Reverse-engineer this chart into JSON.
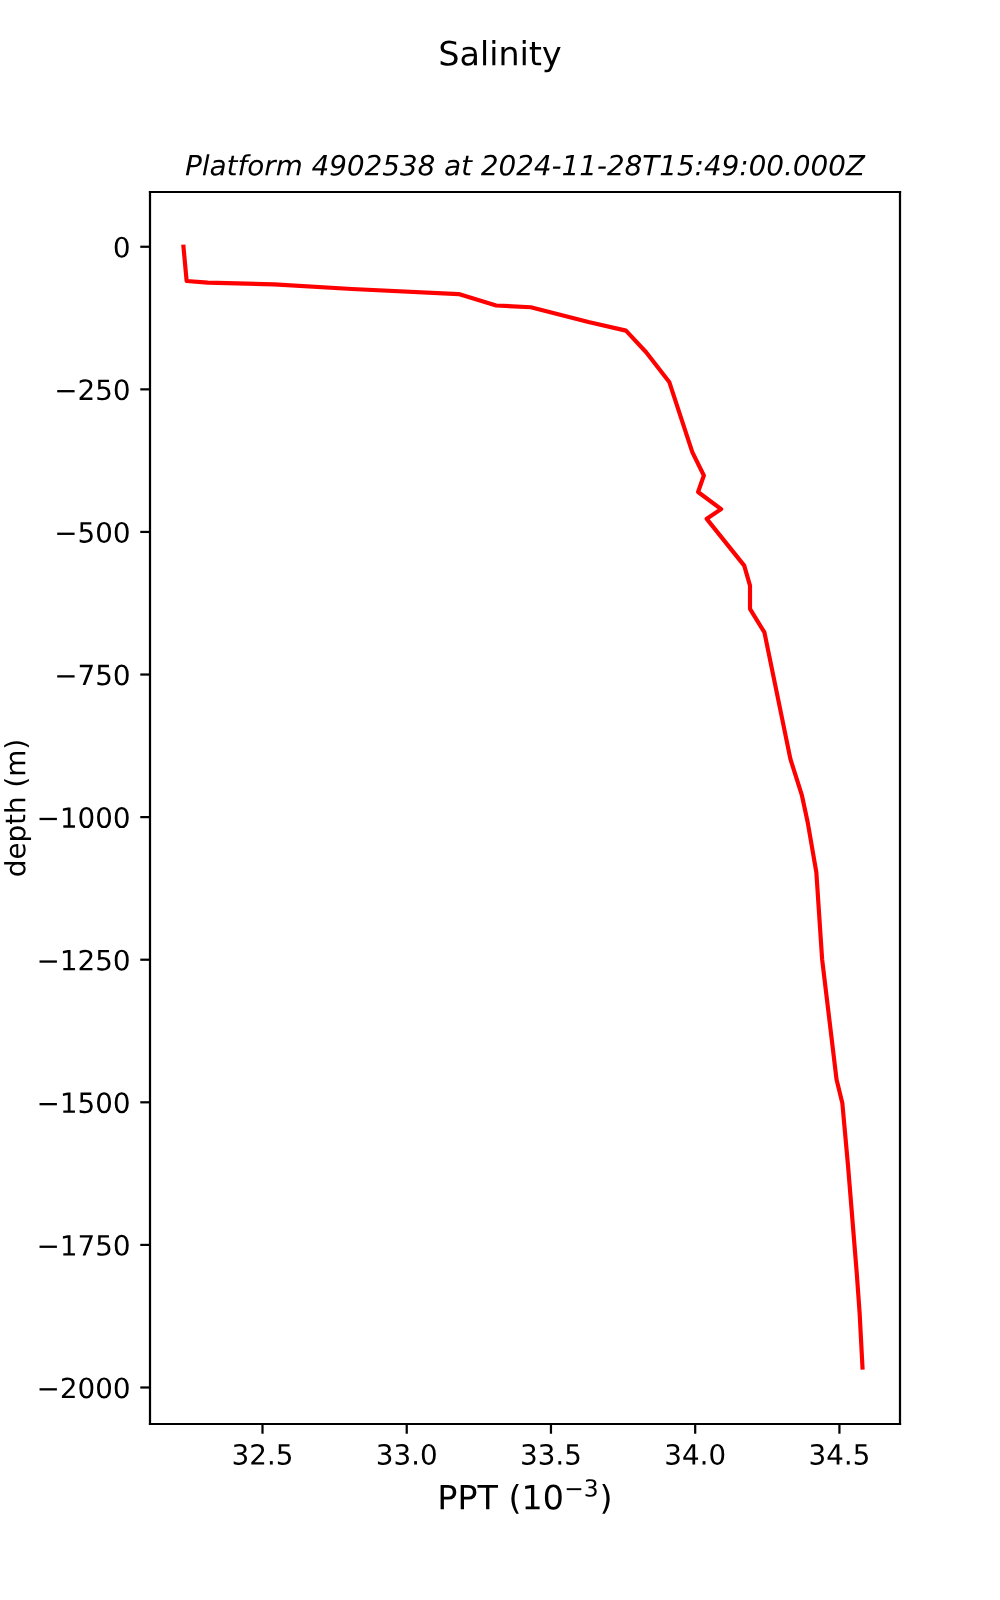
{
  "chart_data": {
    "type": "line",
    "title": "Salinity",
    "subtitle": "Platform 4902538 at 2024-11-28T15:49:00.000Z",
    "xlabel": "PPT (10$^{−3}$)",
    "ylabel": "depth (m)",
    "x": [
      32.226,
      32.237,
      32.31,
      32.54,
      32.81,
      33.18,
      33.31,
      33.43,
      33.63,
      33.76,
      33.83,
      33.91,
      33.99,
      34.03,
      34.01,
      34.09,
      34.04,
      34.17,
      34.19,
      34.19,
      34.24,
      34.33,
      34.37,
      34.39,
      34.42,
      34.44,
      34.49,
      34.51,
      34.53,
      34.56,
      34.57,
      34.58
    ],
    "series": [
      {
        "color": "#ff0000",
        "values": [
          0,
          -60,
          -63,
          -66,
          -74,
          -83,
          -103,
          -106,
          -132,
          -147,
          -185,
          -237,
          -360,
          -401,
          -430,
          -460,
          -477,
          -559,
          -594,
          -635,
          -676,
          -898,
          -962,
          -1009,
          -1097,
          -1249,
          -1460,
          -1501,
          -1612,
          -1799,
          -1869,
          -1965
        ]
      }
    ],
    "xlim": [
      32.11,
      34.71
    ],
    "ylim": [
      -2064,
      96
    ],
    "xticks": [
      32.5,
      {
        "value": 33,
        "label": "33.0"
      },
      33.5,
      {
        "value": 34,
        "label": "34.0"
      },
      34.5
    ],
    "yticks": [
      0,
      -250,
      -500,
      -750,
      -1000,
      -1250,
      -1500,
      -1750,
      -2000
    ],
    "grid": false,
    "legend": false,
    "marker": "none",
    "line_style": "solid"
  }
}
